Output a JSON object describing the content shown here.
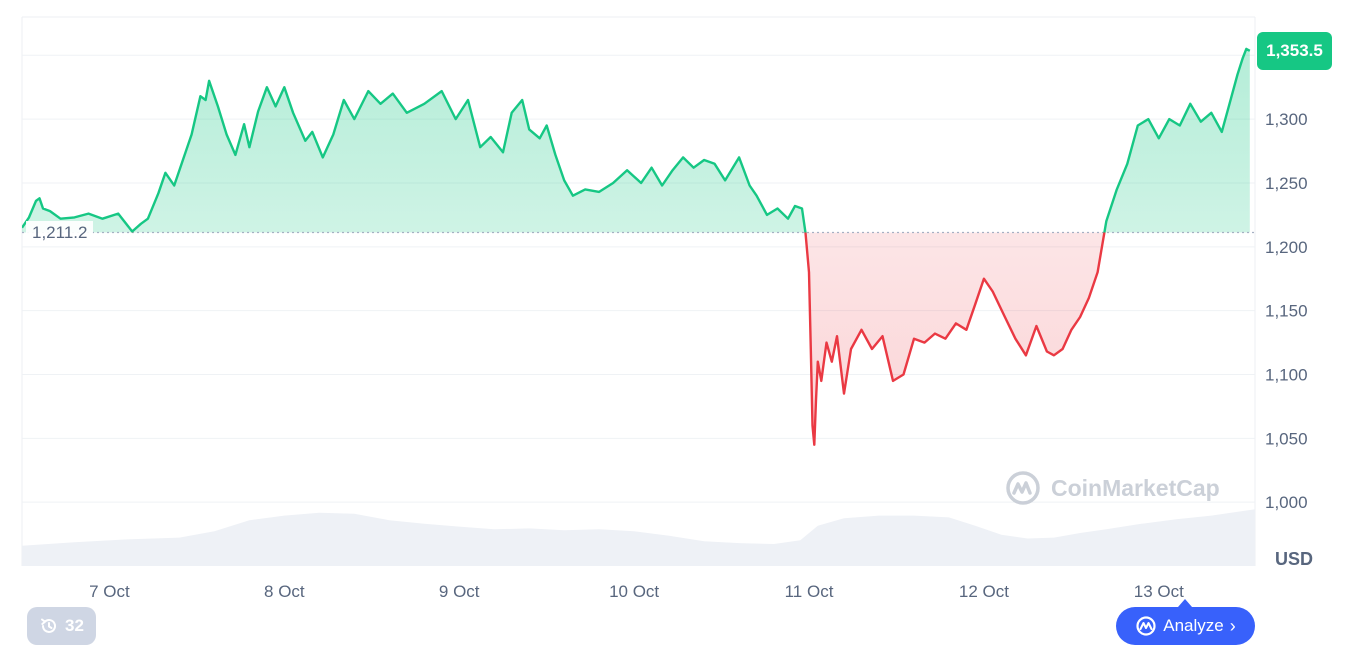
{
  "chart_data": {
    "type": "area",
    "title": "",
    "xlabel": "",
    "ylabel": "",
    "unit_label": "USD",
    "ylim": [
      950,
      1380
    ],
    "y_ticks": [
      1000,
      1050,
      1100,
      1150,
      1200,
      1250,
      1300
    ],
    "y_tick_labels": [
      "1,000",
      "1,050",
      "1,100",
      "1,150",
      "1,200",
      "1,250",
      "1,300"
    ],
    "x_range": [
      0,
      7.05
    ],
    "x_ticks": [
      0.5,
      1.5,
      2.5,
      3.5,
      4.5,
      5.5,
      6.5
    ],
    "x_tick_labels": [
      "7 Oct",
      "8 Oct",
      "9 Oct",
      "10 Oct",
      "11 Oct",
      "12 Oct",
      "13 Oct"
    ],
    "baseline": 1211.2,
    "baseline_label": "1,211.2",
    "current_value_label": "1,353.5",
    "grid": true,
    "colors": {
      "up": "#16c784",
      "down": "#ea3943",
      "up_fill": "#16c784",
      "down_fill": "#ea3943",
      "volume": "#eef1f6",
      "axis_text": "#58667e",
      "badge": "#16c784",
      "analyze": "#3861fb"
    },
    "series": [
      {
        "x": [
          0.0,
          0.04,
          0.08,
          0.1,
          0.12,
          0.16,
          0.22,
          0.3,
          0.38,
          0.46,
          0.55,
          0.63,
          0.68,
          0.72,
          0.78,
          0.82,
          0.87,
          0.92,
          0.97,
          1.02,
          1.05,
          1.07,
          1.12,
          1.17,
          1.22,
          1.27,
          1.3,
          1.35,
          1.4,
          1.45,
          1.5,
          1.55,
          1.62,
          1.66,
          1.72,
          1.78,
          1.84,
          1.9,
          1.98,
          2.05,
          2.12,
          2.2,
          2.3,
          2.4,
          2.48,
          2.55,
          2.62,
          2.68,
          2.75,
          2.8,
          2.86,
          2.9,
          2.96,
          3.0,
          3.05,
          3.1,
          3.15,
          3.22,
          3.3,
          3.38,
          3.46,
          3.54,
          3.6,
          3.66,
          3.72,
          3.78,
          3.84,
          3.9,
          3.96,
          4.02,
          4.1,
          4.16,
          4.2,
          4.26,
          4.32,
          4.38,
          4.42,
          4.46,
          4.48,
          4.5,
          4.51,
          4.52,
          4.53,
          4.54,
          4.55,
          4.57,
          4.6,
          4.63,
          4.66,
          4.7,
          4.74,
          4.8,
          4.86,
          4.92,
          4.98,
          5.04,
          5.1,
          5.16,
          5.22,
          5.28,
          5.34,
          5.4,
          5.45,
          5.5,
          5.55,
          5.62,
          5.68,
          5.74,
          5.8,
          5.86,
          5.9,
          5.95,
          6.0,
          6.05,
          6.1,
          6.15,
          6.2,
          6.26,
          6.32,
          6.38,
          6.44,
          6.5,
          6.56,
          6.62,
          6.68,
          6.74,
          6.8,
          6.86,
          6.9,
          6.95,
          6.98,
          7.0,
          7.02
        ],
        "y": [
          1215,
          1223,
          1236,
          1238,
          1230,
          1228,
          1222,
          1223,
          1226,
          1222,
          1226,
          1212,
          1218,
          1222,
          1242,
          1258,
          1248,
          1268,
          1288,
          1318,
          1315,
          1330,
          1310,
          1288,
          1272,
          1296,
          1278,
          1306,
          1325,
          1310,
          1325,
          1305,
          1283,
          1290,
          1270,
          1288,
          1315,
          1300,
          1322,
          1312,
          1320,
          1305,
          1312,
          1322,
          1300,
          1315,
          1278,
          1286,
          1274,
          1305,
          1315,
          1292,
          1285,
          1295,
          1272,
          1252,
          1240,
          1245,
          1243,
          1250,
          1260,
          1250,
          1262,
          1248,
          1260,
          1270,
          1262,
          1268,
          1265,
          1252,
          1270,
          1248,
          1240,
          1225,
          1230,
          1222,
          1232,
          1230,
          1211,
          1180,
          1120,
          1060,
          1045,
          1080,
          1110,
          1095,
          1125,
          1110,
          1130,
          1085,
          1120,
          1135,
          1120,
          1130,
          1095,
          1100,
          1128,
          1125,
          1132,
          1128,
          1140,
          1135,
          1155,
          1175,
          1165,
          1145,
          1128,
          1115,
          1138,
          1118,
          1115,
          1120,
          1135,
          1145,
          1160,
          1180,
          1220,
          1245,
          1265,
          1295,
          1300,
          1285,
          1300,
          1295,
          1312,
          1298,
          1305,
          1290,
          1310,
          1335,
          1348,
          1355,
          1353.5
        ]
      }
    ],
    "volume": {
      "x": [
        0.0,
        0.3,
        0.6,
        0.9,
        1.1,
        1.3,
        1.5,
        1.7,
        1.9,
        2.1,
        2.3,
        2.5,
        2.7,
        2.9,
        3.1,
        3.3,
        3.5,
        3.7,
        3.9,
        4.1,
        4.3,
        4.45,
        4.55,
        4.7,
        4.9,
        5.1,
        5.3,
        5.45,
        5.6,
        5.75,
        5.9,
        6.05,
        6.2,
        6.4,
        6.6,
        6.8,
        7.05
      ],
      "values": [
        22,
        26,
        29,
        31,
        38,
        50,
        55,
        58,
        57,
        50,
        46,
        43,
        40,
        41,
        39,
        40,
        38,
        33,
        27,
        25,
        24,
        28,
        44,
        52,
        55,
        55,
        53,
        44,
        34,
        30,
        31,
        36,
        40,
        46,
        51,
        55,
        62
      ]
    }
  },
  "controls": {
    "history_count": "32",
    "analyze_label": "Analyze"
  },
  "watermark": {
    "brand": "CoinMarketCap"
  }
}
